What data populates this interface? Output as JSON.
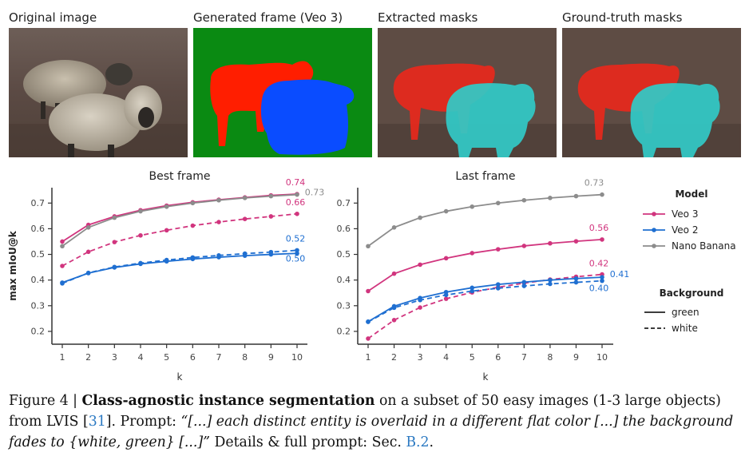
{
  "panels": [
    {
      "label": "Original image"
    },
    {
      "label": "Generated frame (Veo 3)"
    },
    {
      "label": "Extracted masks"
    },
    {
      "label": "Ground-truth masks"
    }
  ],
  "colors": {
    "veo3": "#d1357e",
    "veo2": "#1f6fd1",
    "nano": "#8c8c8c",
    "mask_red": "#e8281c",
    "mask_cyan": "#31c9c6",
    "gen_green": "#0a8a12",
    "gen_red": "#ff1e00",
    "gen_blue": "#0a4cff"
  },
  "chart_data": [
    {
      "type": "line",
      "title": "Best frame",
      "xlabel": "k",
      "ylabel": "max mIoU@k",
      "x": [
        1,
        2,
        3,
        4,
        5,
        6,
        7,
        8,
        9,
        10
      ],
      "xticks": [
        "1",
        "2",
        "3",
        "4",
        "5",
        "6",
        "7",
        "8",
        "9",
        "10"
      ],
      "yticks": [
        "0.2",
        "0.3",
        "0.4",
        "0.5",
        "0.6",
        "0.7"
      ],
      "ylim": [
        0.15,
        0.76
      ],
      "series": [
        {
          "name": "Veo 3 green",
          "model": "veo3",
          "style": "solid",
          "values": [
            0.55,
            0.615,
            0.648,
            0.672,
            0.69,
            0.703,
            0.713,
            0.722,
            0.73,
            0.735
          ],
          "end_label": "0.74"
        },
        {
          "name": "Veo 3 white",
          "model": "veo3",
          "style": "dashed",
          "values": [
            0.455,
            0.51,
            0.548,
            0.574,
            0.594,
            0.612,
            0.626,
            0.638,
            0.648,
            0.658
          ],
          "end_label": "0.66"
        },
        {
          "name": "Veo 2 green",
          "model": "veo2",
          "style": "solid",
          "values": [
            0.39,
            0.427,
            0.449,
            0.463,
            0.473,
            0.482,
            0.489,
            0.495,
            0.5,
            0.504
          ],
          "end_label": "0.50"
        },
        {
          "name": "Veo 2 white",
          "model": "veo2",
          "style": "dashed",
          "values": [
            0.387,
            0.428,
            0.451,
            0.466,
            0.478,
            0.488,
            0.496,
            0.503,
            0.509,
            0.516
          ],
          "end_label": "0.52"
        },
        {
          "name": "Nano Banana",
          "model": "nano",
          "style": "solid",
          "values": [
            0.532,
            0.605,
            0.643,
            0.668,
            0.686,
            0.7,
            0.711,
            0.72,
            0.727,
            0.733
          ],
          "end_label": "0.73"
        }
      ]
    },
    {
      "type": "line",
      "title": "Last frame",
      "xlabel": "k",
      "ylabel": "",
      "x": [
        1,
        2,
        3,
        4,
        5,
        6,
        7,
        8,
        9,
        10
      ],
      "xticks": [
        "1",
        "2",
        "3",
        "4",
        "5",
        "6",
        "7",
        "8",
        "9",
        "10"
      ],
      "yticks": [
        "0.2",
        "0.3",
        "0.4",
        "0.5",
        "0.6",
        "0.7"
      ],
      "ylim": [
        0.15,
        0.76
      ],
      "series": [
        {
          "name": "Nano Banana",
          "model": "nano",
          "style": "solid",
          "values": [
            0.532,
            0.605,
            0.643,
            0.668,
            0.686,
            0.7,
            0.711,
            0.72,
            0.727,
            0.733
          ],
          "end_label": "0.73"
        },
        {
          "name": "Veo 3 green",
          "model": "veo3",
          "style": "solid",
          "values": [
            0.357,
            0.425,
            0.46,
            0.485,
            0.505,
            0.52,
            0.533,
            0.543,
            0.551,
            0.558
          ],
          "end_label": "0.56"
        },
        {
          "name": "Veo 3 white",
          "model": "veo3",
          "style": "dashed",
          "values": [
            0.172,
            0.244,
            0.293,
            0.327,
            0.352,
            0.372,
            0.388,
            0.402,
            0.413,
            0.422
          ],
          "end_label": "0.42"
        },
        {
          "name": "Veo 2 green",
          "model": "veo2",
          "style": "solid",
          "values": [
            0.238,
            0.298,
            0.33,
            0.353,
            0.37,
            0.383,
            0.392,
            0.4,
            0.406,
            0.411
          ],
          "end_label": "0.41"
        },
        {
          "name": "Veo 2 white",
          "model": "veo2",
          "style": "dashed",
          "values": [
            0.237,
            0.292,
            0.322,
            0.342,
            0.357,
            0.368,
            0.377,
            0.385,
            0.391,
            0.397
          ],
          "end_label": "0.40"
        }
      ]
    }
  ],
  "legend": {
    "model_title": "Model",
    "models": [
      {
        "key": "veo3",
        "label": "Veo 3"
      },
      {
        "key": "veo2",
        "label": "Veo 2"
      },
      {
        "key": "nano",
        "label": "Nano Banana"
      }
    ],
    "background_title": "Background",
    "backgrounds": [
      {
        "style": "solid",
        "label": "green"
      },
      {
        "style": "dashed",
        "label": "white"
      }
    ]
  },
  "caption": {
    "fig": "Figure 4 | ",
    "bold": "Class-agnostic instance segmentation",
    "rest1": " on a subset of 50 easy images (1-3 large objects)",
    "line2a": "from LVIS [",
    "ref": "31",
    "line2b": "]. Prompt: ",
    "prompt1": "“[...] each distinct entity is overlaid in a different flat color [...] the background",
    "prompt2": "fades to {white, green} [...]”",
    "line3b": " Details & full prompt: Sec. ",
    "sec": "B.2",
    "end": "."
  }
}
